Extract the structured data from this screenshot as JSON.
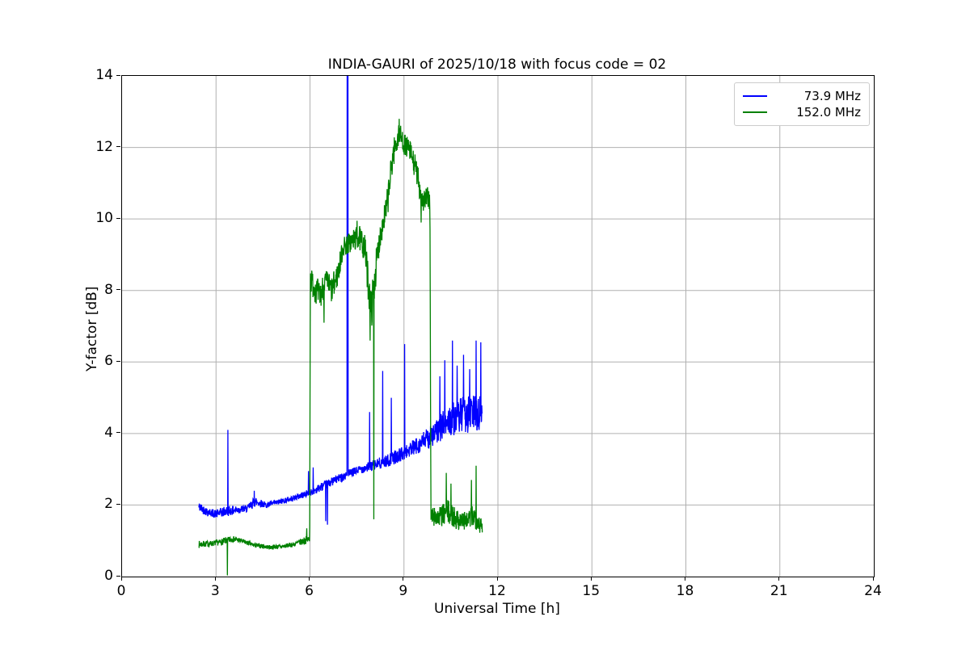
{
  "chart_data": {
    "type": "line",
    "title": "INDIA-GAURI of 2025/10/18 with focus code = 02",
    "xlabel": "Universal Time [h]",
    "ylabel": "Y-factor [dB]",
    "xlim": [
      0,
      24
    ],
    "ylim": [
      0,
      14
    ],
    "xticks": [
      0,
      3,
      6,
      9,
      12,
      15,
      18,
      21,
      24
    ],
    "yticks": [
      0,
      2,
      4,
      6,
      8,
      10,
      12,
      14
    ],
    "grid": true,
    "grid_color": "#b0b0b0",
    "legend_position": "upper right",
    "series": [
      {
        "name": "73.9 MHz",
        "color": "#0000ff",
        "seed": 42,
        "samples": 1150,
        "envelope_x": [
          2.45,
          2.7,
          3.0,
          3.3,
          3.6,
          4.0,
          4.25,
          4.6,
          5.0,
          5.5,
          6.0,
          6.35,
          6.8,
          7.2,
          7.6,
          8.0,
          8.5,
          9.0,
          9.5,
          10.0,
          10.4,
          10.8,
          11.2,
          11.5
        ],
        "envelope_y": [
          1.95,
          1.82,
          1.75,
          1.82,
          1.86,
          1.9,
          2.1,
          2.0,
          2.08,
          2.2,
          2.35,
          2.5,
          2.7,
          2.85,
          3.0,
          3.1,
          3.25,
          3.45,
          3.7,
          4.0,
          4.35,
          4.5,
          4.55,
          4.6
        ],
        "noise_amp": [
          0.14,
          0.12,
          0.12,
          0.15,
          0.12,
          0.1,
          0.15,
          0.08,
          0.08,
          0.08,
          0.1,
          0.12,
          0.12,
          0.12,
          0.12,
          0.15,
          0.18,
          0.2,
          0.25,
          0.35,
          0.45,
          0.5,
          0.55,
          0.5
        ],
        "spikes": [
          [
            3.38,
            4.1
          ],
          [
            4.22,
            2.4
          ],
          [
            5.95,
            2.95
          ],
          [
            6.1,
            3.05
          ],
          [
            6.5,
            1.55
          ],
          [
            6.56,
            1.45
          ],
          [
            7.19,
            15.3
          ],
          [
            7.198,
            15.3
          ],
          [
            7.206,
            15.3
          ],
          [
            7.214,
            15.3
          ],
          [
            7.9,
            4.6
          ],
          [
            8.32,
            5.75
          ],
          [
            8.6,
            5.0
          ],
          [
            9.02,
            6.5
          ],
          [
            10.15,
            5.6
          ],
          [
            10.3,
            6.05
          ],
          [
            10.55,
            6.6
          ],
          [
            10.7,
            5.9
          ],
          [
            10.9,
            6.2
          ],
          [
            11.1,
            5.8
          ],
          [
            11.3,
            6.6
          ],
          [
            11.45,
            6.55
          ]
        ]
      },
      {
        "name": "152.0 MHz",
        "color": "#008000",
        "seed": 7,
        "samples": 1150,
        "envelope_x": [
          2.45,
          2.8,
          3.1,
          3.3,
          3.55,
          3.8,
          4.2,
          4.7,
          5.1,
          5.5,
          5.8,
          5.99,
          6.01,
          6.15,
          6.3,
          6.5,
          6.7,
          6.9,
          7.05,
          7.3,
          7.55,
          7.75,
          7.95,
          8.1,
          8.25,
          8.45,
          8.65,
          8.85,
          9.0,
          9.2,
          9.4,
          9.6,
          9.8,
          9.83,
          9.86,
          10.1,
          10.4,
          10.7,
          11.0,
          11.25,
          11.5
        ],
        "envelope_y": [
          0.9,
          0.92,
          0.95,
          1.0,
          1.05,
          1.0,
          0.88,
          0.82,
          0.84,
          0.9,
          1.0,
          1.05,
          8.3,
          8.1,
          7.8,
          8.3,
          8.0,
          8.5,
          9.2,
          9.35,
          9.5,
          9.2,
          7.4,
          8.6,
          9.6,
          10.3,
          11.8,
          12.4,
          12.1,
          11.9,
          11.3,
          10.5,
          10.6,
          10.4,
          1.7,
          1.65,
          1.8,
          1.6,
          1.55,
          1.7,
          1.35
        ],
        "noise_amp": [
          0.1,
          0.08,
          0.08,
          0.1,
          0.08,
          0.07,
          0.06,
          0.06,
          0.06,
          0.07,
          0.1,
          0.12,
          0.35,
          0.4,
          0.45,
          0.3,
          0.4,
          0.35,
          0.3,
          0.3,
          0.35,
          0.4,
          0.6,
          0.5,
          0.35,
          0.45,
          0.4,
          0.3,
          0.3,
          0.3,
          0.4,
          0.35,
          0.3,
          0.3,
          0.3,
          0.28,
          0.35,
          0.3,
          0.25,
          0.35,
          0.2
        ],
        "spikes": [
          [
            3.36,
            0.03
          ],
          [
            5.9,
            1.35
          ],
          [
            6.45,
            7.1
          ],
          [
            7.5,
            9.95
          ],
          [
            7.92,
            6.6
          ],
          [
            8.04,
            1.6
          ],
          [
            8.85,
            12.8
          ],
          [
            9.55,
            9.9
          ],
          [
            10.35,
            2.9
          ],
          [
            10.5,
            2.6
          ],
          [
            11.15,
            2.7
          ],
          [
            11.3,
            3.1
          ]
        ]
      }
    ]
  },
  "legend": {
    "items": [
      {
        "label": "73.9 MHz",
        "color": "#0000ff"
      },
      {
        "label": "152.0 MHz",
        "color": "#008000"
      }
    ]
  }
}
